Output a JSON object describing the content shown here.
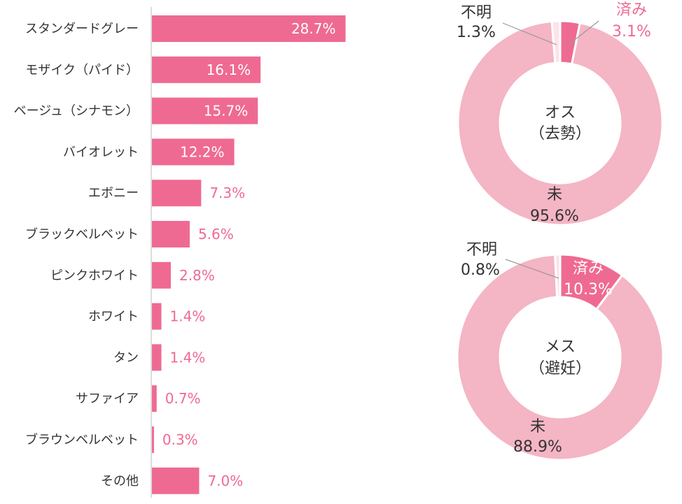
{
  "chart_data": [
    {
      "type": "bar",
      "orientation": "horizontal",
      "categories": [
        "スタンダードグレー",
        "モザイク（パイド）",
        "ベージュ（シナモン）",
        "バイオレット",
        "エボニー",
        "ブラックベルベット",
        "ピンクホワイト",
        "ホワイト",
        "タン",
        "サファイア",
        "ブラウンベルベット",
        "その他"
      ],
      "values": [
        28.7,
        16.1,
        15.7,
        12.2,
        7.3,
        5.6,
        2.8,
        1.4,
        1.4,
        0.7,
        0.3,
        7.0
      ],
      "labels": [
        "28.7%",
        "16.1%",
        "15.7%",
        "12.2%",
        "7.3%",
        "5.6%",
        "2.8%",
        "1.4%",
        "1.4%",
        "0.7%",
        "0.3%",
        "7.0%"
      ],
      "colors": {
        "bar": "#ef6a92",
        "axis": "#bbbbbb"
      }
    },
    {
      "type": "pie",
      "donut": true,
      "center_label": [
        "オス",
        "（去勢）"
      ],
      "slices": [
        {
          "name": "済み",
          "value": 3.1,
          "label": "3.1%",
          "color": "#ef6a92"
        },
        {
          "name": "未",
          "value": 95.6,
          "label": "95.6%",
          "color": "#f4b5c5"
        },
        {
          "name": "不明",
          "value": 1.3,
          "label": "1.3%",
          "color": "#fbe3ea"
        }
      ]
    },
    {
      "type": "pie",
      "donut": true,
      "center_label": [
        "メス",
        "（避妊）"
      ],
      "slices": [
        {
          "name": "済み",
          "value": 10.3,
          "label": "10.3%",
          "color": "#ef6a92"
        },
        {
          "name": "未",
          "value": 88.9,
          "label": "88.9%",
          "color": "#f4b5c5"
        },
        {
          "name": "不明",
          "value": 0.8,
          "label": "0.8%",
          "color": "#fbe3ea"
        }
      ]
    }
  ]
}
